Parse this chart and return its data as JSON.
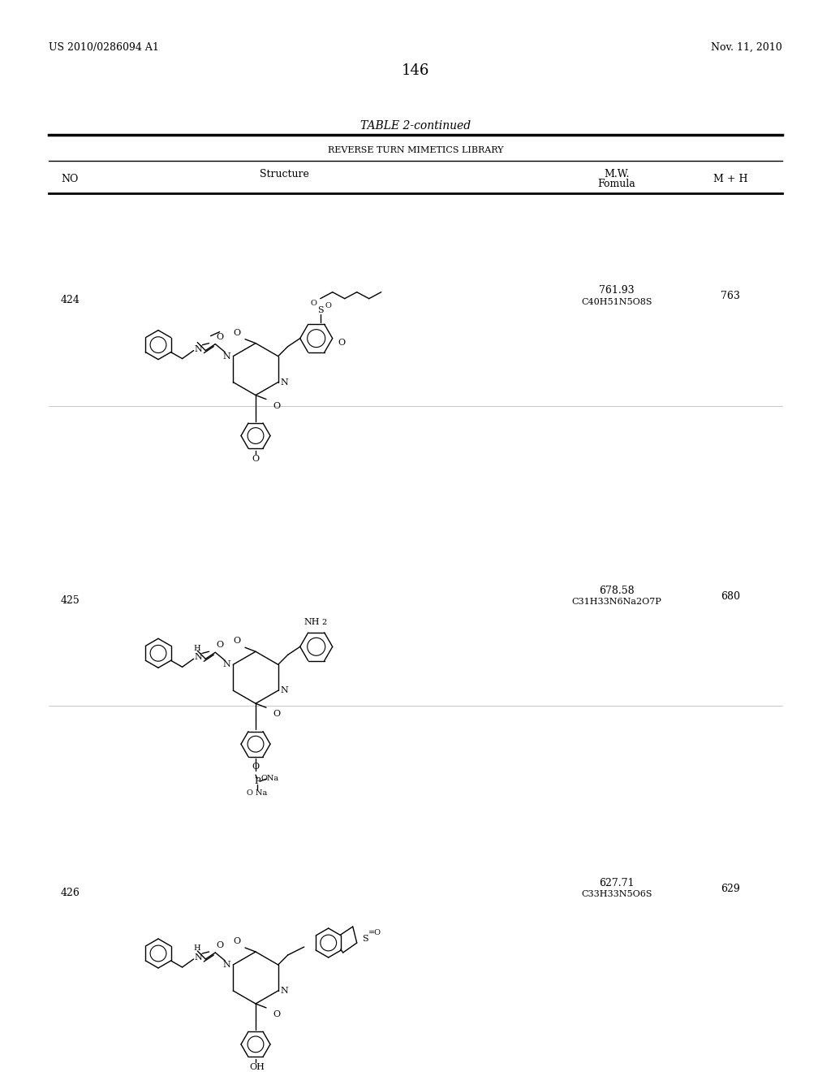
{
  "page_header_left": "US 2010/0286094 A1",
  "page_header_right": "Nov. 11, 2010",
  "page_number": "146",
  "table_title": "TABLE 2-continued",
  "table_subtitle": "REVERSE TURN MIMETICS LIBRARY",
  "col_headers": [
    "NO",
    "Structure",
    "M.W.\nFomula",
    "M + H"
  ],
  "rows": [
    {
      "no": "424",
      "mw": "761.93",
      "formula": "C40H51N5O8S",
      "mh": "763"
    },
    {
      "no": "425",
      "mw": "678.58",
      "formula": "C31H33N6Na2O7P",
      "mh": "680"
    },
    {
      "no": "426",
      "mw": "627.71",
      "formula": "C33H33N5O6S",
      "mh": "629"
    }
  ],
  "background_color": "#ffffff",
  "text_color": "#000000",
  "font_size_header": 9,
  "font_size_body": 9,
  "font_size_page_num": 12
}
